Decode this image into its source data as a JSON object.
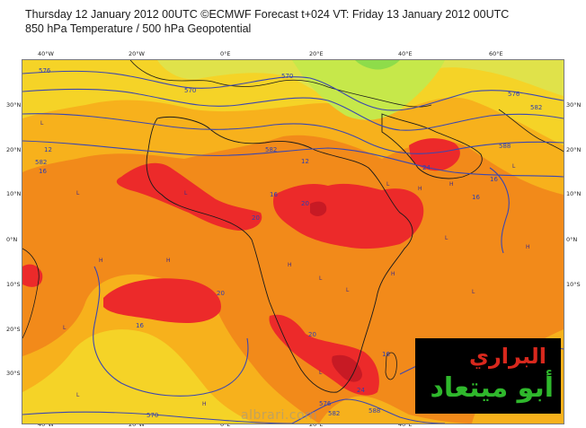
{
  "header": {
    "line1": "Thursday 12 January 2012 00UTC ©ECMWF Forecast t+024 VT: Friday 13 January 2012 00UTC",
    "line2": "850 hPa Temperature / 500 hPa Geopotential"
  },
  "map": {
    "lon_labels": [
      "40°W",
      "20°W",
      "0°E",
      "20°E",
      "40°E",
      "60°E"
    ],
    "lat_labels": [
      "30°N",
      "20°N",
      "10°N",
      "0°N",
      "10°S",
      "20°S",
      "30°S"
    ],
    "contour_labels": [
      "576",
      "570",
      "570",
      "576",
      "582",
      "582",
      "582",
      "588",
      "12",
      "12",
      "16",
      "16",
      "16",
      "16",
      "20",
      "20",
      "24",
      "20",
      "16",
      "16",
      "20",
      "24",
      "576",
      "570",
      "582",
      "588"
    ],
    "pressure_letters": [
      "L",
      "L",
      "L",
      "L",
      "H",
      "H",
      "H",
      "H",
      "H",
      "L",
      "L",
      "L",
      "H",
      "L",
      "L",
      "H",
      "L",
      "L",
      "L",
      "H"
    ],
    "colors": {
      "green": "#c6e84a",
      "yellow_green": "#e0e24a",
      "yellow": "#f5d327",
      "light_orange": "#f7b11c",
      "orange": "#f28a1a",
      "deep_orange": "#ef6a1a",
      "red": "#ec2a2a",
      "dark_red": "#c71a24",
      "contour": "#3b47b0",
      "coast": "#1a1a1a"
    }
  },
  "logo": {
    "line1": "البراري",
    "line2": "أبو ميتعاد"
  },
  "watermark": "albrari.com"
}
